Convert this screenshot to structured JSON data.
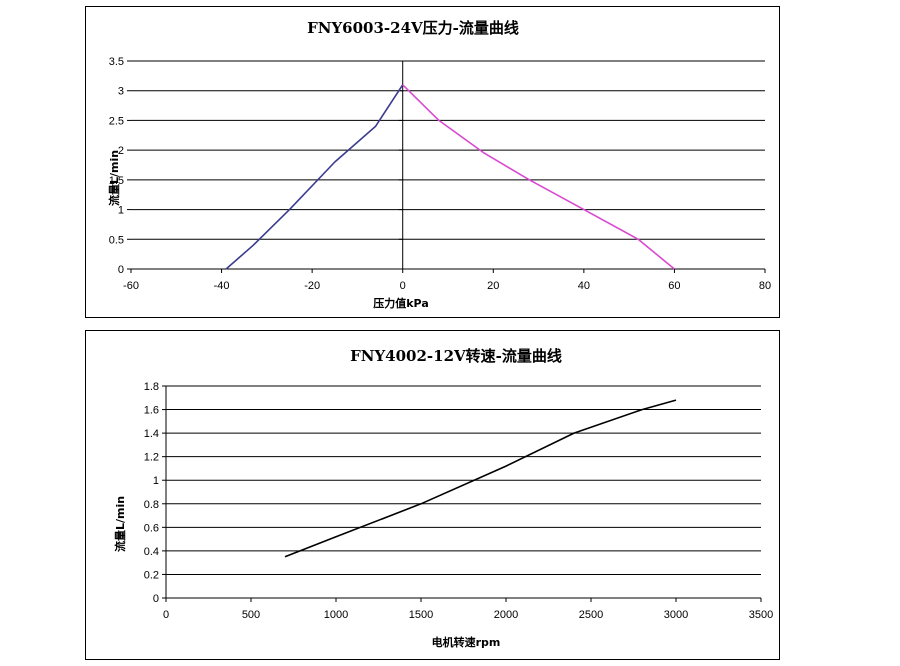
{
  "chart_data": [
    {
      "type": "line",
      "title": "FNY6003-24V压力-流量曲线",
      "xlabel": "压力值kPa",
      "ylabel": "流量L/min",
      "xlim": [
        -60,
        80
      ],
      "ylim": [
        0,
        3.5
      ],
      "xticks": [
        -60,
        -40,
        -20,
        0,
        20,
        40,
        60,
        80
      ],
      "yticks": [
        0,
        0.5,
        1,
        1.5,
        2,
        2.5,
        3,
        3.5
      ],
      "ytick_labels": [
        "0",
        "0.5",
        "1",
        "1.5",
        "2",
        "2.5",
        "3",
        "3.5"
      ],
      "grid": true,
      "series": [
        {
          "color": "#3b3b8f",
          "x": [
            -39,
            -33,
            -25,
            -15,
            -6,
            0
          ],
          "y": [
            0,
            0.4,
            1.0,
            1.8,
            2.4,
            3.1
          ]
        },
        {
          "color": "#d94ad0",
          "x": [
            0,
            8,
            18,
            28,
            40,
            52,
            60
          ],
          "y": [
            3.1,
            2.5,
            1.95,
            1.5,
            1.0,
            0.5,
            0
          ]
        }
      ]
    },
    {
      "type": "line",
      "title": "FNY4002-12V转速-流量曲线",
      "xlabel": "电机转速rpm",
      "ylabel": "流量L/min",
      "xlim": [
        0,
        3500
      ],
      "ylim": [
        0,
        1.8
      ],
      "xticks": [
        0,
        500,
        1000,
        1500,
        2000,
        2500,
        3000,
        3500
      ],
      "yticks": [
        0,
        0.2,
        0.4,
        0.6,
        0.8,
        1,
        1.2,
        1.4,
        1.6,
        1.8
      ],
      "ytick_labels": [
        "0",
        "0.2",
        "0.4",
        "0.6",
        "0.8",
        "1",
        "1.2",
        "1.4",
        "1.6",
        "1.8"
      ],
      "grid": true,
      "series": [
        {
          "color": "#000000",
          "x": [
            700,
            1000,
            1500,
            2000,
            2400,
            2800,
            3000
          ],
          "y": [
            0.35,
            0.52,
            0.8,
            1.12,
            1.4,
            1.6,
            1.68
          ]
        }
      ]
    }
  ]
}
